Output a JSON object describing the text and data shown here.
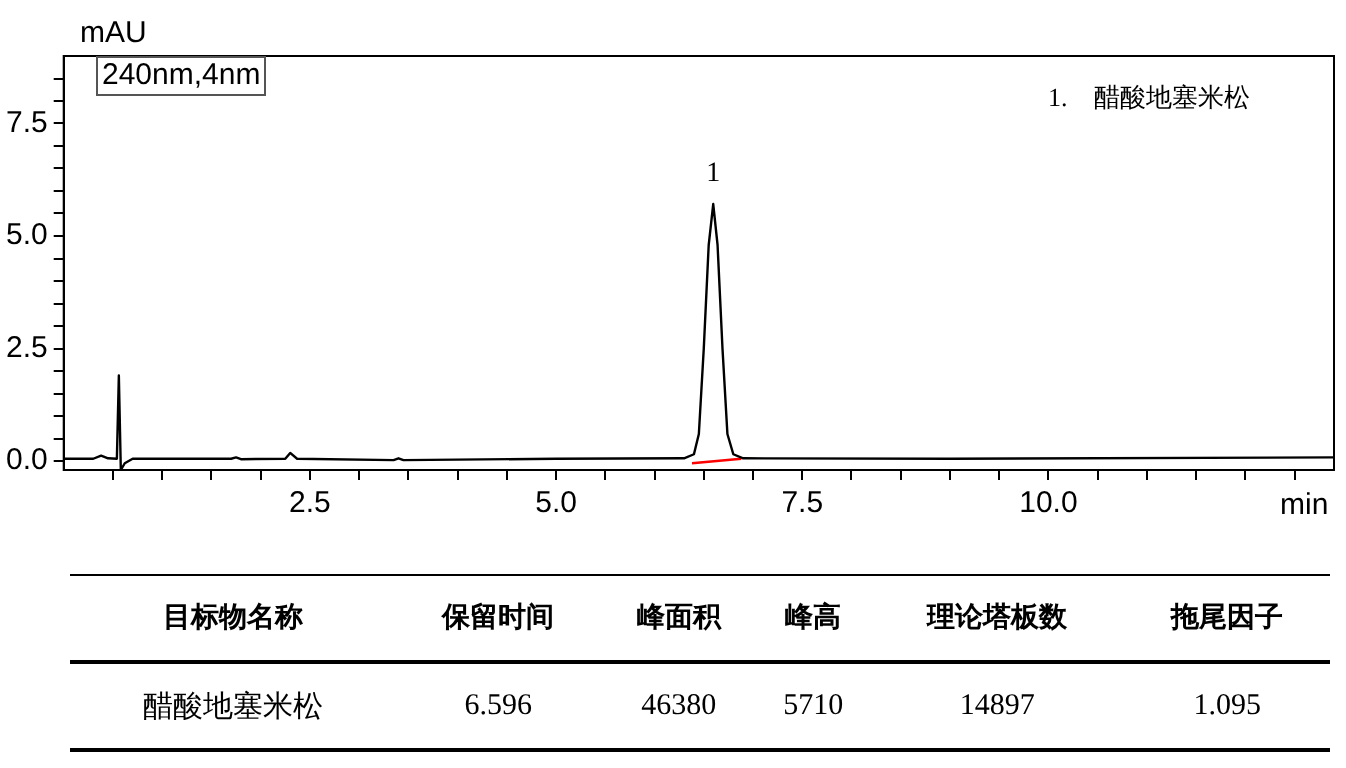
{
  "chart_data": {
    "type": "line",
    "xlabel": "min",
    "ylabel": "mAU",
    "xlim": [
      0,
      12.9
    ],
    "ylim": [
      -0.2,
      9.0
    ],
    "xticks": [
      {
        "value": 0.5,
        "label": null
      },
      {
        "value": 1,
        "label": null
      },
      {
        "value": 1.5,
        "label": null
      },
      {
        "value": 2,
        "label": null
      },
      {
        "value": 2.5,
        "label": "2.5"
      },
      {
        "value": 3,
        "label": null
      },
      {
        "value": 3.5,
        "label": null
      },
      {
        "value": 4,
        "label": null
      },
      {
        "value": 4.5,
        "label": null
      },
      {
        "value": 5,
        "label": "5.0"
      },
      {
        "value": 5.5,
        "label": null
      },
      {
        "value": 6,
        "label": null
      },
      {
        "value": 6.5,
        "label": null
      },
      {
        "value": 7,
        "label": null
      },
      {
        "value": 7.5,
        "label": "7.5"
      },
      {
        "value": 8,
        "label": null
      },
      {
        "value": 8.5,
        "label": null
      },
      {
        "value": 9,
        "label": null
      },
      {
        "value": 9.5,
        "label": null
      },
      {
        "value": 10,
        "label": "10.0"
      },
      {
        "value": 10.5,
        "label": null
      },
      {
        "value": 11,
        "label": null
      },
      {
        "value": 11.5,
        "label": null
      },
      {
        "value": 12,
        "label": null
      },
      {
        "value": 12.5,
        "label": null
      }
    ],
    "yticks": [
      {
        "value": 0,
        "label": "0.0"
      },
      {
        "value": 0.5,
        "label": null
      },
      {
        "value": 1,
        "label": null
      },
      {
        "value": 1.5,
        "label": null
      },
      {
        "value": 2,
        "label": null
      },
      {
        "value": 2.5,
        "label": "2.5"
      },
      {
        "value": 3,
        "label": null
      },
      {
        "value": 3.5,
        "label": null
      },
      {
        "value": 4,
        "label": null
      },
      {
        "value": 4.5,
        "label": null
      },
      {
        "value": 5,
        "label": "5.0"
      },
      {
        "value": 5.5,
        "label": null
      },
      {
        "value": 6,
        "label": null
      },
      {
        "value": 6.5,
        "label": null
      },
      {
        "value": 7,
        "label": null
      },
      {
        "value": 7.5,
        "label": "7.5"
      },
      {
        "value": 8,
        "label": null
      },
      {
        "value": 8.5,
        "label": null
      }
    ],
    "grid": false,
    "marker": "none",
    "line_style": "solid",
    "series": [
      {
        "color": "#000000",
        "x": [
          0,
          0.3,
          0.38,
          0.45,
          0.54,
          0.56,
          0.58,
          0.62,
          0.7,
          1.7,
          1.75,
          1.8,
          2.25,
          2.3,
          2.37,
          3.35,
          3.4,
          3.45,
          5.0,
          6.3,
          6.4,
          6.45,
          6.5,
          6.55,
          6.596,
          6.64,
          6.69,
          6.74,
          6.8,
          6.9,
          9.0,
          12.9
        ],
        "values": [
          0.05,
          0.05,
          0.12,
          0.06,
          0.05,
          1.9,
          -0.2,
          -0.05,
          0.05,
          0.05,
          0.08,
          0.04,
          0.05,
          0.18,
          0.05,
          0.02,
          0.06,
          0.02,
          0.05,
          0.06,
          0.15,
          0.6,
          2.5,
          4.8,
          5.71,
          4.8,
          2.5,
          0.6,
          0.15,
          0.06,
          0.05,
          0.08
        ]
      },
      {
        "color": "#ff0000",
        "x": [
          6.38,
          6.88
        ],
        "values": [
          -0.05,
          0.05
        ]
      }
    ],
    "annotations": [
      "240nm,4nm",
      "1.    醋酸地塞米松",
      {
        "text": "1",
        "x": 6.596,
        "y": 5.71
      },
      "目标物名称",
      "保留时间",
      "峰面积",
      "峰高",
      "理论塔板数",
      "拖尾因子",
      "醋酸地塞米松",
      "6.596",
      "46380",
      "5710",
      "14897",
      "1.095"
    ]
  }
}
